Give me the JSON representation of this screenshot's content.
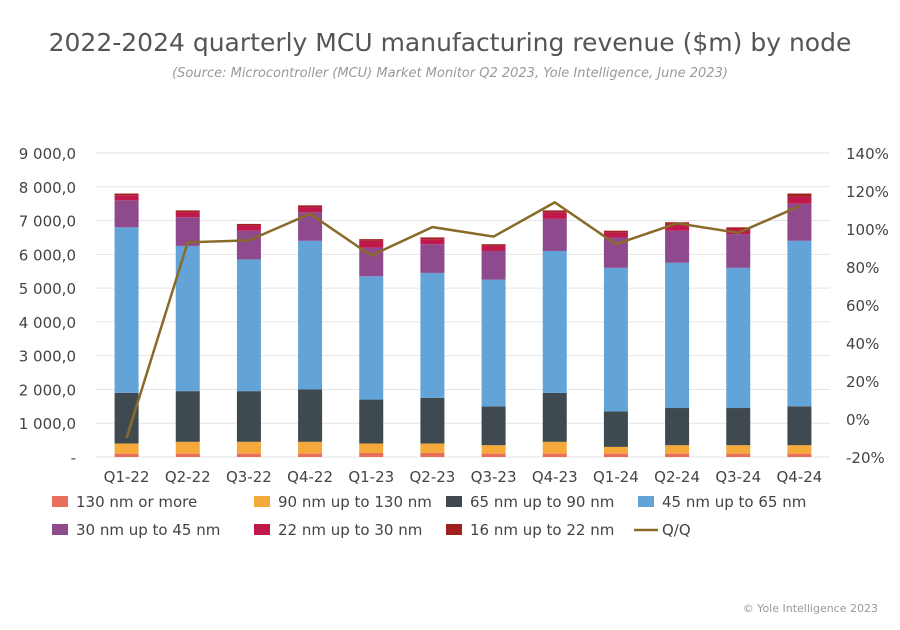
{
  "chart_data": {
    "type": "bar",
    "stacked": true,
    "title": "2022-2024 quarterly MCU manufacturing revenue ($m) by node",
    "subtitle": "(Source: Microcontroller (MCU) Market Monitor Q2 2023, Yole Intelligence, June 2023)",
    "categories": [
      "Q1-22",
      "Q2-22",
      "Q3-22",
      "Q4-22",
      "Q1-23",
      "Q2-23",
      "Q3-23",
      "Q4-23",
      "Q1-24",
      "Q2-24",
      "Q3-24",
      "Q4-24"
    ],
    "ylim": [
      0,
      9000
    ],
    "yticks": [
      0,
      1000,
      2000,
      3000,
      4000,
      5000,
      6000,
      7000,
      8000,
      9000
    ],
    "ytick_labels": [
      "-",
      "1 000,0",
      "2 000,0",
      "3 000,0",
      "4 000,0",
      "5 000,0",
      "6 000,0",
      "7 000,0",
      "8 000,0",
      "9 000,0"
    ],
    "y2lim": [
      -20,
      140
    ],
    "y2ticks": [
      -20,
      0,
      20,
      40,
      60,
      80,
      100,
      120,
      140
    ],
    "y2tick_labels": [
      "-20%",
      "0%",
      "20%",
      "40%",
      "60%",
      "80%",
      "100%",
      "120%",
      "140%"
    ],
    "grid": true,
    "legend_position": "bottom",
    "series": [
      {
        "name": "130 nm or more",
        "color": "#e8705a",
        "values": [
          100,
          100,
          100,
          100,
          120,
          120,
          100,
          100,
          100,
          100,
          100,
          100
        ]
      },
      {
        "name": "90 nm up to 130 nm",
        "color": "#f4a93a",
        "values": [
          300,
          350,
          350,
          350,
          280,
          280,
          250,
          350,
          200,
          250,
          250,
          250
        ]
      },
      {
        "name": "65 nm up to 90 nm",
        "color": "#3f4a50",
        "values": [
          1500,
          1500,
          1500,
          1550,
          1300,
          1350,
          1150,
          1450,
          1050,
          1100,
          1100,
          1150
        ]
      },
      {
        "name": "45 nm  up to 65 nm",
        "color": "#62a4d8",
        "values": [
          4900,
          4300,
          3900,
          4400,
          3650,
          3700,
          3750,
          4200,
          4250,
          4300,
          4150,
          4900
        ]
      },
      {
        "name": "30 nm up to 45 nm",
        "color": "#8e4a8c",
        "values": [
          800,
          850,
          850,
          850,
          850,
          850,
          850,
          950,
          900,
          950,
          1000,
          1100
        ]
      },
      {
        "name": "22 nm up to 30 nm",
        "color": "#c0184a",
        "values": [
          150,
          150,
          150,
          150,
          200,
          150,
          150,
          200,
          150,
          200,
          150,
          200
        ]
      },
      {
        "name": "16 nm up to 22 nm",
        "color": "#a02020",
        "values": [
          50,
          50,
          50,
          50,
          50,
          50,
          50,
          50,
          50,
          50,
          50,
          100
        ]
      }
    ],
    "line_series": {
      "name": "Q/Q",
      "color": "#8a6a2a",
      "axis": "right",
      "unit": "%",
      "values": [
        -10,
        93,
        94,
        108,
        86,
        101,
        96,
        114,
        92,
        103,
        98,
        112
      ]
    }
  },
  "copyright": "© Yole Intelligence 2023"
}
